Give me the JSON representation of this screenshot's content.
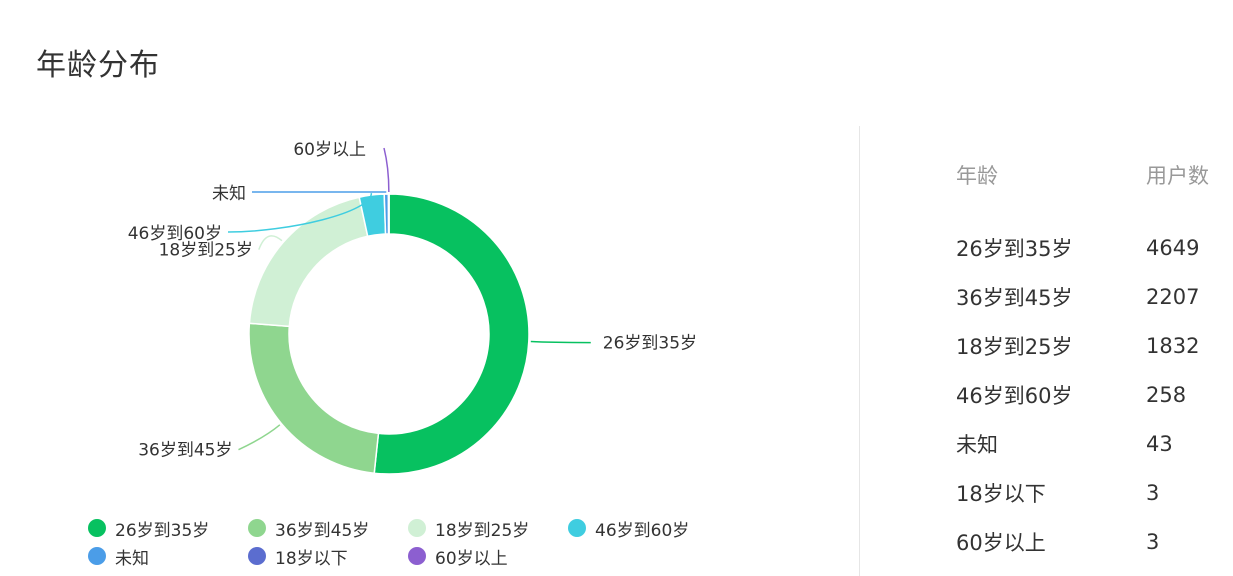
{
  "page": {
    "title": "年龄分布"
  },
  "colors": [
    "#07c160",
    "#8fd68f",
    "#d0f0d5",
    "#3fcde0",
    "#4b9de8",
    "#5b6dcf",
    "#8c5fd0"
  ],
  "chart_data": {
    "type": "pie",
    "donut": true,
    "categories": [
      "26岁到35岁",
      "36岁到45岁",
      "18岁到25岁",
      "46岁到60岁",
      "未知",
      "18岁以下",
      "60岁以上"
    ],
    "values": [
      4649,
      2207,
      1832,
      258,
      43,
      3,
      3
    ],
    "legend_position": "bottom"
  },
  "table": {
    "headers": {
      "age": "年龄",
      "count": "用户数"
    },
    "rows": [
      {
        "age": "26岁到35岁",
        "count": "4649"
      },
      {
        "age": "36岁到45岁",
        "count": "2207"
      },
      {
        "age": "18岁到25岁",
        "count": "1832"
      },
      {
        "age": "46岁到60岁",
        "count": "258"
      },
      {
        "age": "未知",
        "count": "43"
      },
      {
        "age": "18岁以下",
        "count": "3"
      },
      {
        "age": "60岁以上",
        "count": "3"
      }
    ]
  }
}
